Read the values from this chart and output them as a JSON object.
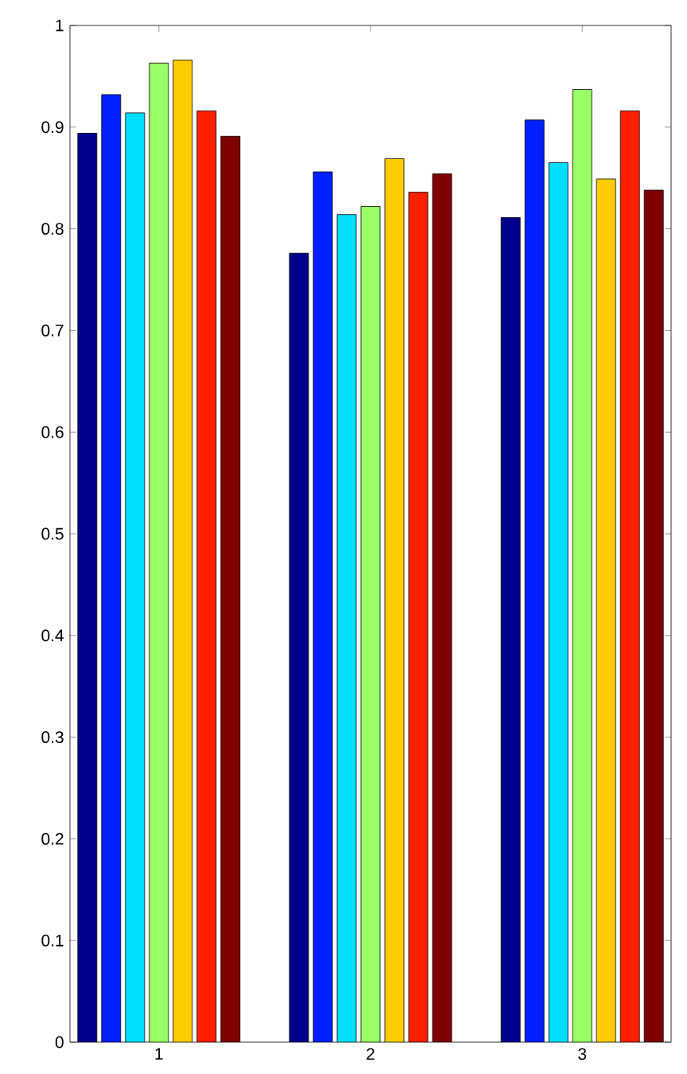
{
  "chart_data": {
    "type": "bar",
    "categories": [
      "1",
      "2",
      "3"
    ],
    "series": [
      {
        "color": "#00008f",
        "values": [
          0.894,
          0.776,
          0.811
        ]
      },
      {
        "color": "#0020ff",
        "values": [
          0.932,
          0.856,
          0.907
        ]
      },
      {
        "color": "#00dfff",
        "values": [
          0.914,
          0.814,
          0.865
        ]
      },
      {
        "color": "#99ff66",
        "values": [
          0.963,
          0.822,
          0.937
        ]
      },
      {
        "color": "#ffcc00",
        "values": [
          0.966,
          0.869,
          0.849
        ]
      },
      {
        "color": "#ff2000",
        "values": [
          0.916,
          0.836,
          0.916
        ]
      },
      {
        "color": "#800000",
        "values": [
          0.891,
          0.854,
          0.838
        ]
      }
    ],
    "ylim": [
      0,
      1
    ],
    "yticks": [
      0,
      0.1,
      0.2,
      0.3,
      0.4,
      0.5,
      0.6,
      0.7,
      0.8,
      0.9,
      1
    ]
  }
}
